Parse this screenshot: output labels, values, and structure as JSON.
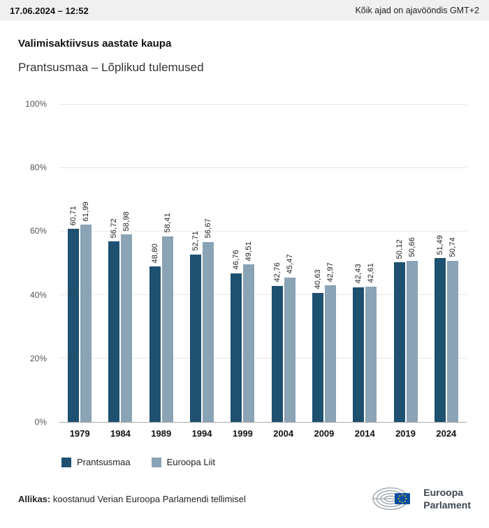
{
  "header": {
    "datetime": "17.06.2024 – 12:52",
    "timezone_note": "Kõik ajad on ajavööndis GMT+2"
  },
  "title": "Valimisaktiivsus aastate kaupa",
  "subtitle": "Prantsusmaa – Lõplikud tulemused",
  "chart_data": {
    "type": "bar",
    "title": "Valimisaktiivsus aastate kaupa",
    "subtitle": "Prantsusmaa – Lõplikud tulemused",
    "categories": [
      "1979",
      "1984",
      "1989",
      "1994",
      "1999",
      "2004",
      "2009",
      "2014",
      "2019",
      "2024"
    ],
    "series": [
      {
        "name": "Prantsusmaa",
        "color": "#1e5070",
        "values": [
          60.71,
          56.72,
          48.8,
          52.71,
          46.76,
          42.76,
          40.63,
          42.43,
          50.12,
          51.49
        ]
      },
      {
        "name": "Euroopa Liit",
        "color": "#8aa3b5",
        "values": [
          61.99,
          58.98,
          58.41,
          56.67,
          49.51,
          45.47,
          42.97,
          42.61,
          50.66,
          50.74
        ]
      }
    ],
    "value_labels": [
      [
        "60,71",
        "56,72",
        "48,80",
        "52,71",
        "46,76",
        "42,76",
        "40,63",
        "42,43",
        "50,12",
        "51,49"
      ],
      [
        "61,99",
        "58,98",
        "58,41",
        "56,67",
        "49,51",
        "45,47",
        "42,97",
        "42,61",
        "50,66",
        "50,74"
      ]
    ],
    "ylim": [
      0,
      100
    ],
    "yticks": [
      {
        "v": 0,
        "label": "0%"
      },
      {
        "v": 20,
        "label": "20%"
      },
      {
        "v": 40,
        "label": "40%"
      },
      {
        "v": 60,
        "label": "60%"
      },
      {
        "v": 80,
        "label": "80%"
      },
      {
        "v": 100,
        "label": "100%"
      }
    ],
    "grid": true,
    "legend_position": "bottom"
  },
  "legend": {
    "items": [
      {
        "label": "Prantsusmaa",
        "color": "#1e5070"
      },
      {
        "label": "Euroopa Liit",
        "color": "#8aa3b5"
      }
    ]
  },
  "footer": {
    "source_label": "Allikas:",
    "source_text": " koostanud Verian Euroopa Parlamendi tellimisel"
  },
  "logo": {
    "line1": "Euroopa",
    "line2": "Parlament",
    "flag_blue": "#0a4ea0",
    "star_yellow": "#ffcc00"
  }
}
